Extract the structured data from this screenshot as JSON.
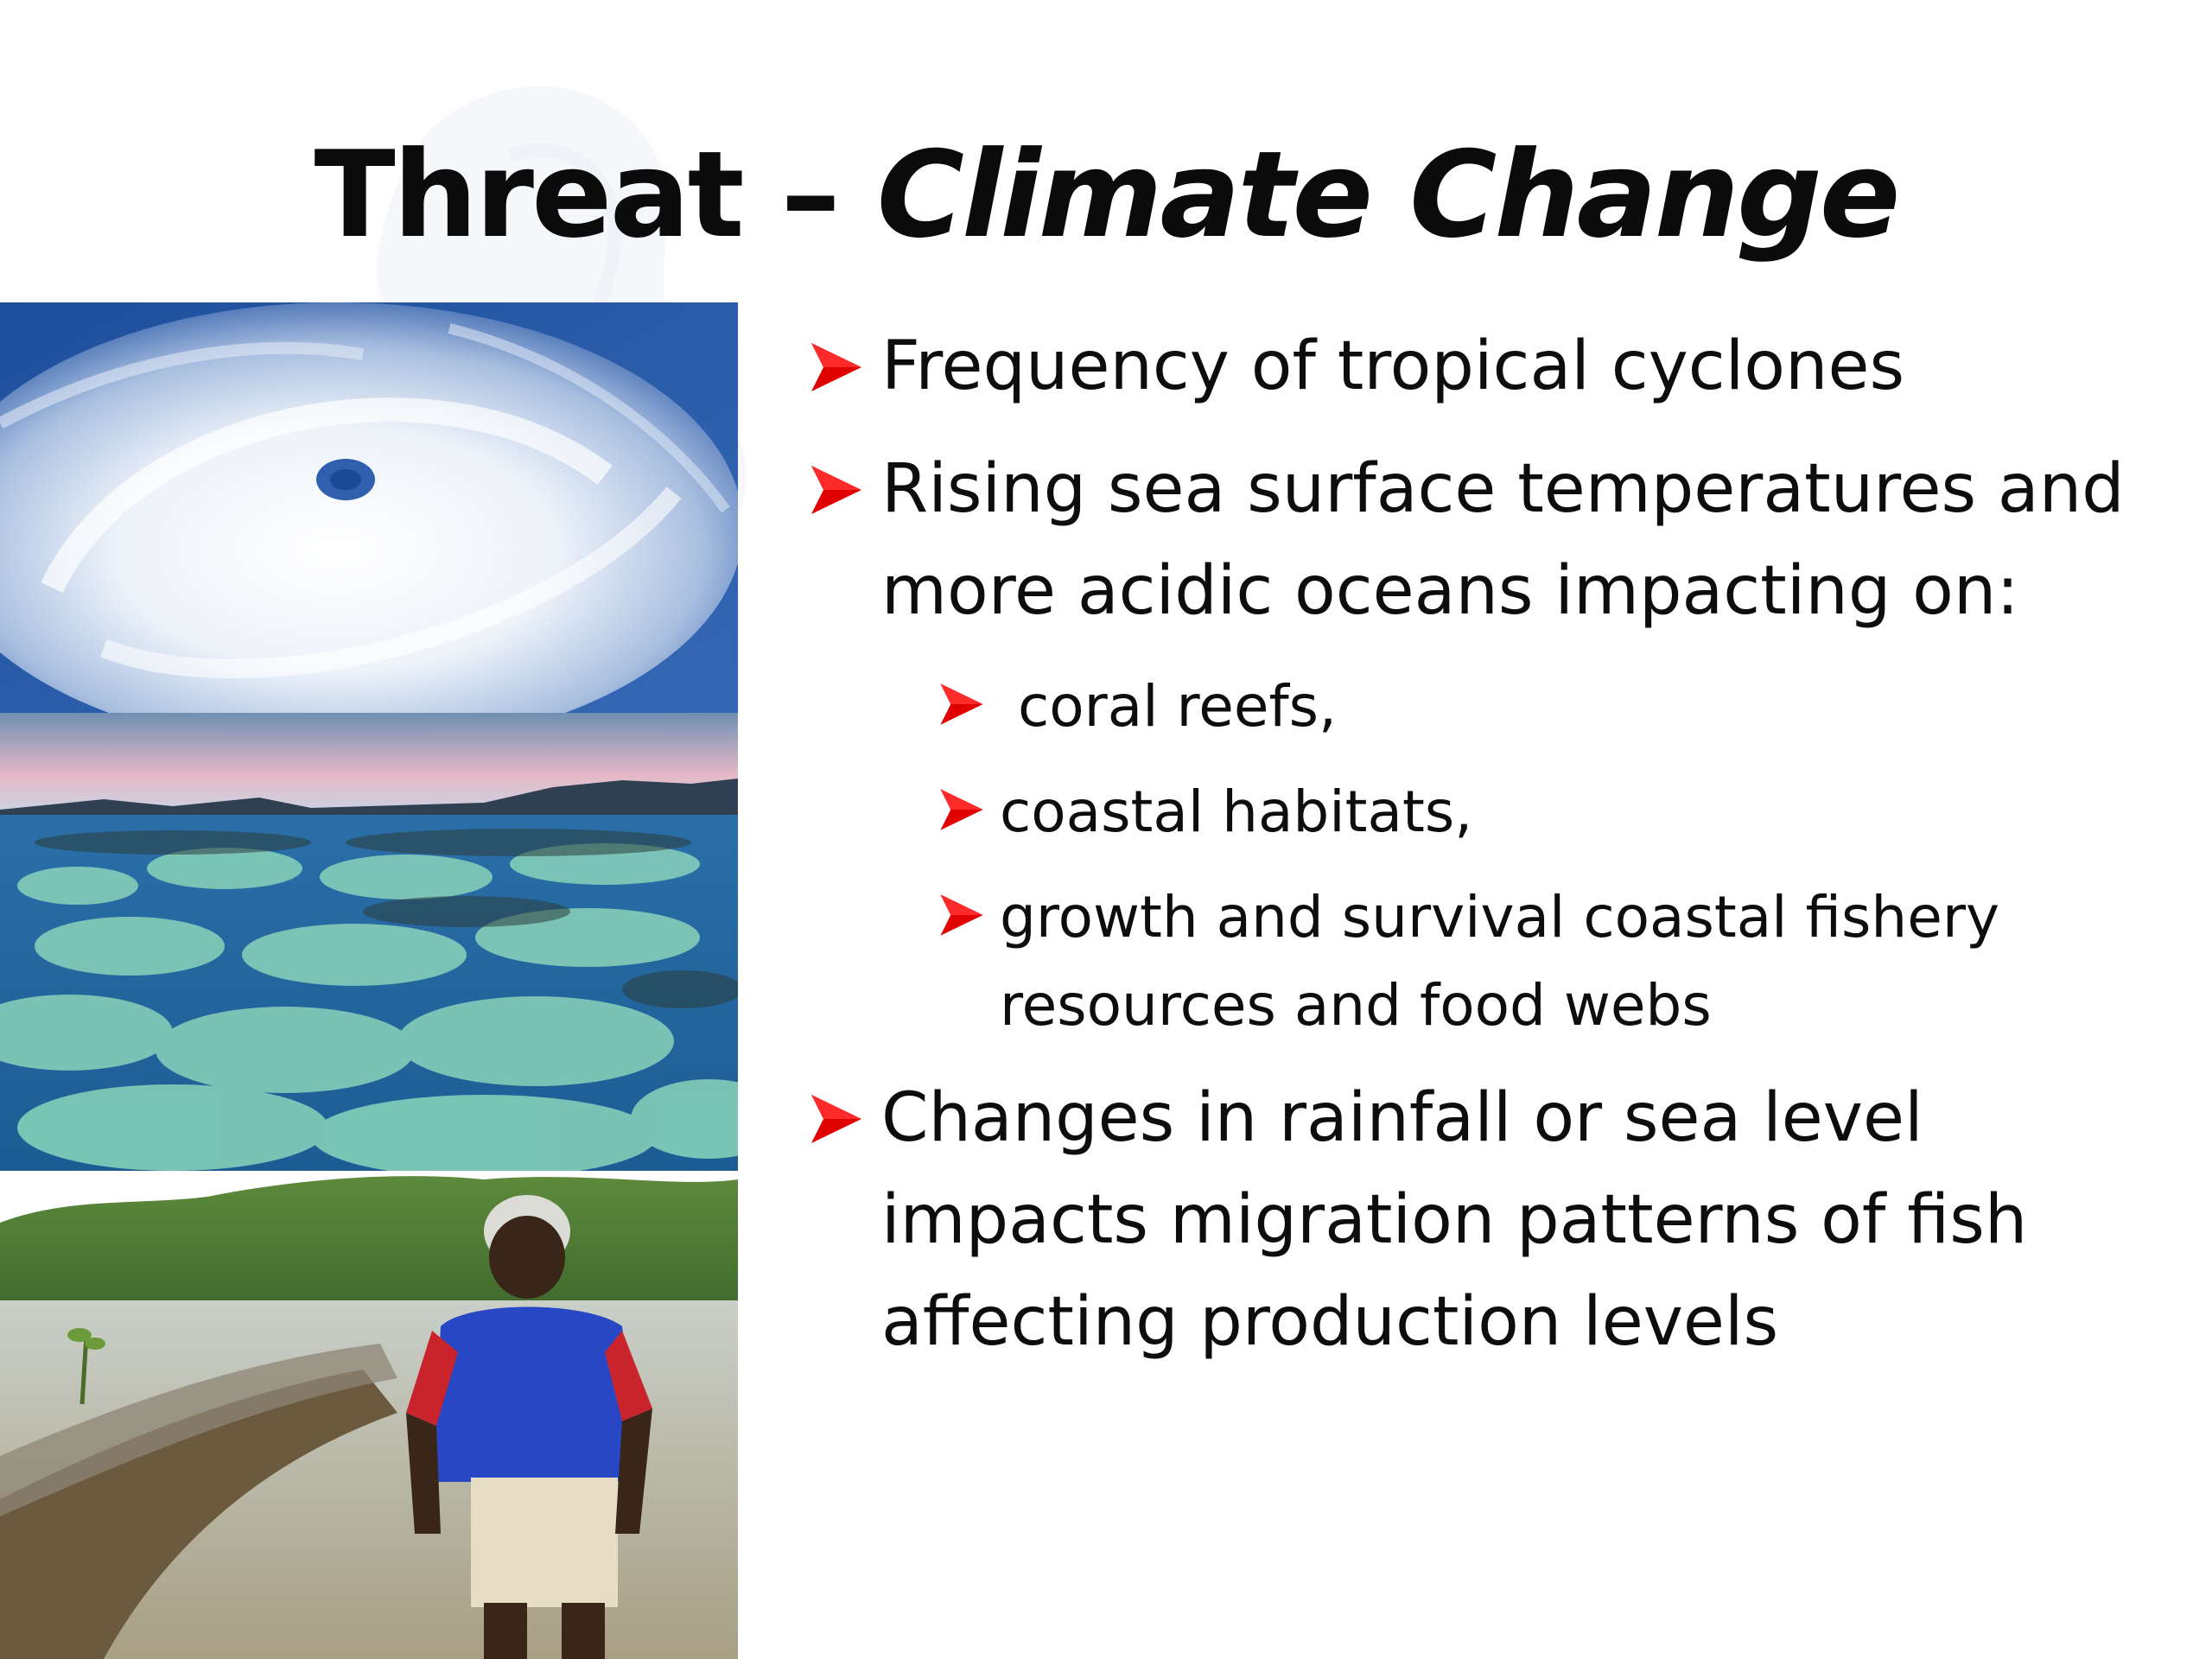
{
  "slide": {
    "title_plain": "Threat – ",
    "title_italic": "Climate Change",
    "images": [
      {
        "icon": "cyclone-satellite-image"
      },
      {
        "icon": "bleached-coral-reef-image"
      },
      {
        "icon": "man-at-mangrove-shore-image"
      }
    ],
    "bullets": [
      {
        "text": "Frequency of tropical cyclones"
      },
      {
        "text": "Rising sea surface temperatures and more acidic oceans impacting on:"
      },
      {
        "text": "Changes in rainfall or sea level impacts migration patterns of fish affecting production levels"
      }
    ],
    "subbullets": [
      {
        "text": " coral reefs,"
      },
      {
        "text": "coastal habitats,"
      },
      {
        "text": "growth and survival coastal fishery resources and  food webs"
      }
    ],
    "bullet_icon": "red-arrow-bullet-icon",
    "colors": {
      "bullet_arrow": "#e00000",
      "title": "#0b0b0b",
      "text": "#0d0d0d"
    }
  }
}
